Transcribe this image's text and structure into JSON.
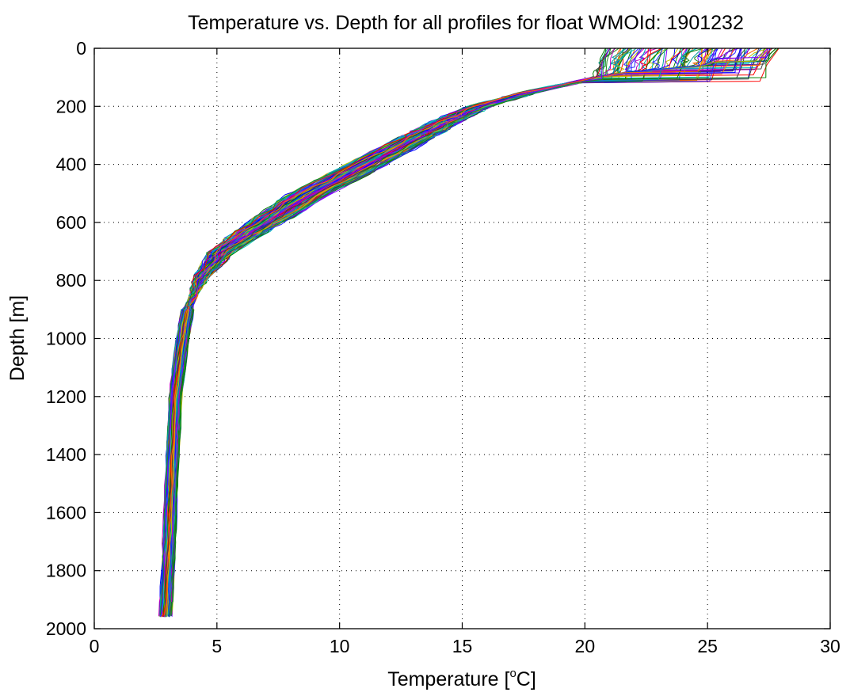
{
  "chart_data": {
    "type": "line",
    "title": "Temperature vs. Depth for all profiles for float WMOId: 1901232",
    "xlabel_main": "Temperature [",
    "xlabel_sup": "o",
    "xlabel_end": "C]",
    "ylabel": "Depth [m]",
    "xlim": [
      0,
      30
    ],
    "ylim": [
      0,
      2000
    ],
    "y_reversed": true,
    "grid": true,
    "legend": "none",
    "x_ticks": [
      0,
      5,
      10,
      15,
      20,
      25,
      30
    ],
    "y_ticks": [
      0,
      200,
      400,
      600,
      800,
      1000,
      1200,
      1400,
      1600,
      1800,
      2000
    ],
    "x_tick_labels": [
      "0",
      "5",
      "10",
      "15",
      "20",
      "25",
      "30"
    ],
    "y_tick_labels": [
      "0",
      "200",
      "400",
      "600",
      "800",
      "1000",
      "1200",
      "1400",
      "1600",
      "1800",
      "2000"
    ],
    "base_profile": {
      "depth": [
        0,
        60,
        80,
        100,
        120,
        150,
        200,
        250,
        300,
        400,
        500,
        600,
        700,
        800,
        900,
        1000,
        1200,
        1400,
        1600,
        1800,
        1960
      ],
      "temperature": [
        26.0,
        25.0,
        22.0,
        20.5,
        19.5,
        17.8,
        15.7,
        14.4,
        13.3,
        11.1,
        8.8,
        7.0,
        5.2,
        4.3,
        3.8,
        3.6,
        3.3,
        3.2,
        3.1,
        3.0,
        2.9
      ]
    },
    "series_count": 120,
    "series_colors": [
      "#0000ff",
      "#008000",
      "#ff0000",
      "#00bfbf",
      "#bf00bf",
      "#bfbf00",
      "#404040",
      "#2a2aff",
      "#ff6a00",
      "#00a0a0",
      "#7f00ff",
      "#1e8a1e"
    ]
  }
}
